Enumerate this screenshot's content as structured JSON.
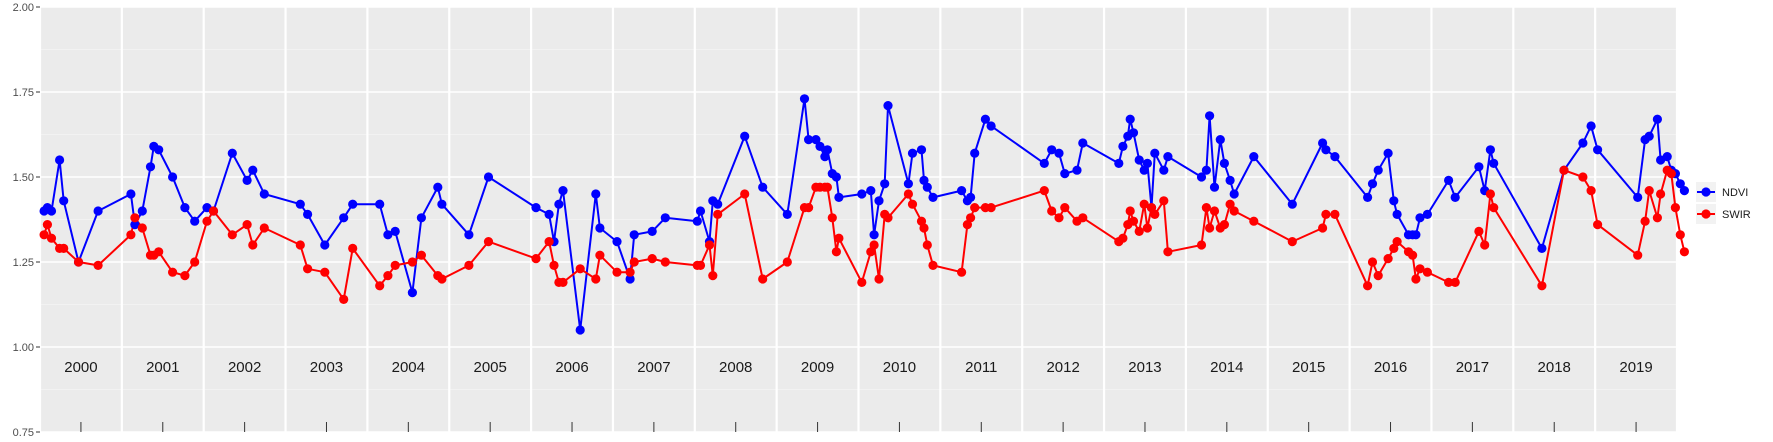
{
  "chart_data": {
    "type": "line",
    "title": "",
    "xlabel": "",
    "ylabel": "",
    "ylim": [
      0.75,
      2.0
    ],
    "y_ticks": [
      "0.75",
      "1.00",
      "1.25",
      "1.50",
      "1.75",
      "2.00"
    ],
    "x_range": [
      2000,
      2020
    ],
    "years": [
      "2000",
      "2001",
      "2002",
      "2003",
      "2004",
      "2005",
      "2006",
      "2007",
      "2008",
      "2009",
      "2010",
      "2011",
      "2012",
      "2013",
      "2014",
      "2015",
      "2016",
      "2017",
      "2018",
      "2019"
    ],
    "grid": true,
    "legend_position": "right",
    "series": [
      {
        "name": "NDVI",
        "color": "#0000ff",
        "points": [
          [
            2000.05,
            1.4
          ],
          [
            2000.09,
            1.41
          ],
          [
            2000.14,
            1.4
          ],
          [
            2000.24,
            1.55
          ],
          [
            2000.29,
            1.43
          ],
          [
            2000.47,
            1.25
          ],
          [
            2000.71,
            1.4
          ],
          [
            2001.11,
            1.45
          ],
          [
            2001.16,
            1.36
          ],
          [
            2001.25,
            1.4
          ],
          [
            2001.35,
            1.53
          ],
          [
            2001.39,
            1.59
          ],
          [
            2001.45,
            1.58
          ],
          [
            2001.62,
            1.5
          ],
          [
            2001.77,
            1.41
          ],
          [
            2001.89,
            1.37
          ],
          [
            2002.04,
            1.41
          ],
          [
            2002.12,
            1.4
          ],
          [
            2002.35,
            1.57
          ],
          [
            2002.53,
            1.49
          ],
          [
            2002.6,
            1.52
          ],
          [
            2002.74,
            1.45
          ],
          [
            2003.18,
            1.42
          ],
          [
            2003.27,
            1.39
          ],
          [
            2003.48,
            1.3
          ],
          [
            2003.71,
            1.38
          ],
          [
            2003.82,
            1.42
          ],
          [
            2004.15,
            1.42
          ],
          [
            2004.25,
            1.33
          ],
          [
            2004.34,
            1.34
          ],
          [
            2004.55,
            1.16
          ],
          [
            2004.66,
            1.38
          ],
          [
            2004.86,
            1.47
          ],
          [
            2004.91,
            1.42
          ],
          [
            2005.24,
            1.33
          ],
          [
            2005.48,
            1.5
          ],
          [
            2006.06,
            1.41
          ],
          [
            2006.22,
            1.39
          ],
          [
            2006.28,
            1.31
          ],
          [
            2006.34,
            1.42
          ],
          [
            2006.39,
            1.46
          ],
          [
            2006.6,
            1.05
          ],
          [
            2006.79,
            1.45
          ],
          [
            2006.84,
            1.35
          ],
          [
            2007.05,
            1.31
          ],
          [
            2007.21,
            1.2
          ],
          [
            2007.26,
            1.33
          ],
          [
            2007.48,
            1.34
          ],
          [
            2007.64,
            1.38
          ],
          [
            2008.03,
            1.37
          ],
          [
            2008.07,
            1.4
          ],
          [
            2008.18,
            1.31
          ],
          [
            2008.22,
            1.43
          ],
          [
            2008.28,
            1.42
          ],
          [
            2008.61,
            1.62
          ],
          [
            2008.83,
            1.47
          ],
          [
            2009.13,
            1.39
          ],
          [
            2009.34,
            1.73
          ],
          [
            2009.39,
            1.61
          ],
          [
            2009.48,
            1.61
          ],
          [
            2009.53,
            1.59
          ],
          [
            2009.59,
            1.56
          ],
          [
            2009.62,
            1.58
          ],
          [
            2009.68,
            1.51
          ],
          [
            2009.73,
            1.5
          ],
          [
            2009.76,
            1.44
          ],
          [
            2010.04,
            1.45
          ],
          [
            2010.15,
            1.46
          ],
          [
            2010.19,
            1.33
          ],
          [
            2010.25,
            1.43
          ],
          [
            2010.32,
            1.48
          ],
          [
            2010.36,
            1.71
          ],
          [
            2010.61,
            1.48
          ],
          [
            2010.66,
            1.57
          ],
          [
            2010.77,
            1.58
          ],
          [
            2010.8,
            1.49
          ],
          [
            2010.84,
            1.47
          ],
          [
            2010.91,
            1.44
          ],
          [
            2011.26,
            1.46
          ],
          [
            2011.33,
            1.43
          ],
          [
            2011.37,
            1.44
          ],
          [
            2011.42,
            1.57
          ],
          [
            2011.55,
            1.67
          ],
          [
            2011.62,
            1.65
          ],
          [
            2012.27,
            1.54
          ],
          [
            2012.36,
            1.58
          ],
          [
            2012.45,
            1.57
          ],
          [
            2012.52,
            1.51
          ],
          [
            2012.67,
            1.52
          ],
          [
            2012.74,
            1.6
          ],
          [
            2013.18,
            1.54
          ],
          [
            2013.23,
            1.59
          ],
          [
            2013.29,
            1.62
          ],
          [
            2013.32,
            1.67
          ],
          [
            2013.36,
            1.63
          ],
          [
            2013.43,
            1.55
          ],
          [
            2013.49,
            1.52
          ],
          [
            2013.53,
            1.54
          ],
          [
            2013.58,
            1.41
          ],
          [
            2013.62,
            1.57
          ],
          [
            2013.73,
            1.52
          ],
          [
            2013.78,
            1.56
          ],
          [
            2014.19,
            1.5
          ],
          [
            2014.25,
            1.52
          ],
          [
            2014.29,
            1.68
          ],
          [
            2014.35,
            1.47
          ],
          [
            2014.42,
            1.61
          ],
          [
            2014.47,
            1.54
          ],
          [
            2014.54,
            1.49
          ],
          [
            2014.59,
            1.45
          ],
          [
            2014.83,
            1.56
          ],
          [
            2015.3,
            1.42
          ],
          [
            2015.67,
            1.6
          ],
          [
            2015.71,
            1.58
          ],
          [
            2015.82,
            1.56
          ],
          [
            2016.22,
            1.44
          ],
          [
            2016.28,
            1.48
          ],
          [
            2016.35,
            1.52
          ],
          [
            2016.47,
            1.57
          ],
          [
            2016.54,
            1.43
          ],
          [
            2016.58,
            1.39
          ],
          [
            2016.72,
            1.33
          ],
          [
            2016.77,
            1.33
          ],
          [
            2016.81,
            1.33
          ],
          [
            2016.86,
            1.38
          ],
          [
            2016.95,
            1.39
          ],
          [
            2017.21,
            1.49
          ],
          [
            2017.29,
            1.44
          ],
          [
            2017.58,
            1.53
          ],
          [
            2017.65,
            1.46
          ],
          [
            2017.72,
            1.58
          ],
          [
            2017.76,
            1.54
          ],
          [
            2018.35,
            1.29
          ],
          [
            2018.62,
            1.52
          ],
          [
            2018.85,
            1.6
          ],
          [
            2018.95,
            1.65
          ],
          [
            2019.03,
            1.58
          ],
          [
            2019.52,
            1.44
          ],
          [
            2019.61,
            1.61
          ],
          [
            2019.66,
            1.62
          ],
          [
            2019.76,
            1.67
          ],
          [
            2019.8,
            1.55
          ],
          [
            2019.88,
            1.56
          ],
          [
            2019.93,
            1.52
          ],
          [
            2019.98,
            1.51
          ],
          [
            2020.04,
            1.48
          ],
          [
            2020.09,
            1.46
          ]
        ]
      },
      {
        "name": "SWIR",
        "color": "#ff0000",
        "points": [
          [
            2000.05,
            1.33
          ],
          [
            2000.09,
            1.36
          ],
          [
            2000.14,
            1.32
          ],
          [
            2000.24,
            1.29
          ],
          [
            2000.29,
            1.29
          ],
          [
            2000.47,
            1.25
          ],
          [
            2000.71,
            1.24
          ],
          [
            2001.11,
            1.33
          ],
          [
            2001.16,
            1.38
          ],
          [
            2001.25,
            1.35
          ],
          [
            2001.35,
            1.27
          ],
          [
            2001.39,
            1.27
          ],
          [
            2001.45,
            1.28
          ],
          [
            2001.62,
            1.22
          ],
          [
            2001.77,
            1.21
          ],
          [
            2001.89,
            1.25
          ],
          [
            2002.04,
            1.37
          ],
          [
            2002.12,
            1.4
          ],
          [
            2002.35,
            1.33
          ],
          [
            2002.53,
            1.36
          ],
          [
            2002.6,
            1.3
          ],
          [
            2002.74,
            1.35
          ],
          [
            2003.18,
            1.3
          ],
          [
            2003.27,
            1.23
          ],
          [
            2003.48,
            1.22
          ],
          [
            2003.71,
            1.14
          ],
          [
            2003.82,
            1.29
          ],
          [
            2004.15,
            1.18
          ],
          [
            2004.25,
            1.21
          ],
          [
            2004.34,
            1.24
          ],
          [
            2004.55,
            1.25
          ],
          [
            2004.66,
            1.27
          ],
          [
            2004.86,
            1.21
          ],
          [
            2004.91,
            1.2
          ],
          [
            2005.24,
            1.24
          ],
          [
            2005.48,
            1.31
          ],
          [
            2006.06,
            1.26
          ],
          [
            2006.22,
            1.31
          ],
          [
            2006.28,
            1.24
          ],
          [
            2006.34,
            1.19
          ],
          [
            2006.39,
            1.19
          ],
          [
            2006.6,
            1.23
          ],
          [
            2006.79,
            1.2
          ],
          [
            2006.84,
            1.27
          ],
          [
            2007.05,
            1.22
          ],
          [
            2007.21,
            1.22
          ],
          [
            2007.26,
            1.25
          ],
          [
            2007.48,
            1.26
          ],
          [
            2007.64,
            1.25
          ],
          [
            2008.03,
            1.24
          ],
          [
            2008.07,
            1.24
          ],
          [
            2008.18,
            1.3
          ],
          [
            2008.22,
            1.21
          ],
          [
            2008.28,
            1.39
          ],
          [
            2008.61,
            1.45
          ],
          [
            2008.83,
            1.2
          ],
          [
            2009.13,
            1.25
          ],
          [
            2009.34,
            1.41
          ],
          [
            2009.39,
            1.41
          ],
          [
            2009.48,
            1.47
          ],
          [
            2009.53,
            1.47
          ],
          [
            2009.59,
            1.47
          ],
          [
            2009.62,
            1.47
          ],
          [
            2009.68,
            1.38
          ],
          [
            2009.73,
            1.28
          ],
          [
            2009.76,
            1.32
          ],
          [
            2010.04,
            1.19
          ],
          [
            2010.15,
            1.28
          ],
          [
            2010.19,
            1.3
          ],
          [
            2010.25,
            1.2
          ],
          [
            2010.32,
            1.39
          ],
          [
            2010.36,
            1.38
          ],
          [
            2010.61,
            1.45
          ],
          [
            2010.66,
            1.42
          ],
          [
            2010.77,
            1.37
          ],
          [
            2010.8,
            1.35
          ],
          [
            2010.84,
            1.3
          ],
          [
            2010.91,
            1.24
          ],
          [
            2011.26,
            1.22
          ],
          [
            2011.33,
            1.36
          ],
          [
            2011.37,
            1.38
          ],
          [
            2011.42,
            1.41
          ],
          [
            2011.55,
            1.41
          ],
          [
            2011.62,
            1.41
          ],
          [
            2012.27,
            1.46
          ],
          [
            2012.36,
            1.4
          ],
          [
            2012.45,
            1.38
          ],
          [
            2012.52,
            1.41
          ],
          [
            2012.67,
            1.37
          ],
          [
            2012.74,
            1.38
          ],
          [
            2013.18,
            1.31
          ],
          [
            2013.23,
            1.32
          ],
          [
            2013.29,
            1.36
          ],
          [
            2013.32,
            1.4
          ],
          [
            2013.36,
            1.37
          ],
          [
            2013.43,
            1.34
          ],
          [
            2013.49,
            1.42
          ],
          [
            2013.53,
            1.35
          ],
          [
            2013.58,
            1.41
          ],
          [
            2013.62,
            1.39
          ],
          [
            2013.73,
            1.43
          ],
          [
            2013.78,
            1.28
          ],
          [
            2014.19,
            1.3
          ],
          [
            2014.25,
            1.41
          ],
          [
            2014.29,
            1.35
          ],
          [
            2014.35,
            1.4
          ],
          [
            2014.42,
            1.35
          ],
          [
            2014.47,
            1.36
          ],
          [
            2014.54,
            1.42
          ],
          [
            2014.59,
            1.4
          ],
          [
            2014.83,
            1.37
          ],
          [
            2015.3,
            1.31
          ],
          [
            2015.67,
            1.35
          ],
          [
            2015.71,
            1.39
          ],
          [
            2015.82,
            1.39
          ],
          [
            2016.22,
            1.18
          ],
          [
            2016.28,
            1.25
          ],
          [
            2016.35,
            1.21
          ],
          [
            2016.47,
            1.26
          ],
          [
            2016.54,
            1.29
          ],
          [
            2016.58,
            1.31
          ],
          [
            2016.72,
            1.28
          ],
          [
            2016.77,
            1.27
          ],
          [
            2016.81,
            1.2
          ],
          [
            2016.86,
            1.23
          ],
          [
            2016.95,
            1.22
          ],
          [
            2017.21,
            1.19
          ],
          [
            2017.29,
            1.19
          ],
          [
            2017.58,
            1.34
          ],
          [
            2017.65,
            1.3
          ],
          [
            2017.72,
            1.45
          ],
          [
            2017.76,
            1.41
          ],
          [
            2018.35,
            1.18
          ],
          [
            2018.62,
            1.52
          ],
          [
            2018.85,
            1.5
          ],
          [
            2018.95,
            1.46
          ],
          [
            2019.03,
            1.36
          ],
          [
            2019.52,
            1.27
          ],
          [
            2019.61,
            1.37
          ],
          [
            2019.66,
            1.46
          ],
          [
            2019.76,
            1.38
          ],
          [
            2019.8,
            1.45
          ],
          [
            2019.88,
            1.52
          ],
          [
            2019.93,
            1.51
          ],
          [
            2019.98,
            1.41
          ],
          [
            2020.04,
            1.33
          ],
          [
            2020.09,
            1.28
          ]
        ]
      }
    ]
  }
}
